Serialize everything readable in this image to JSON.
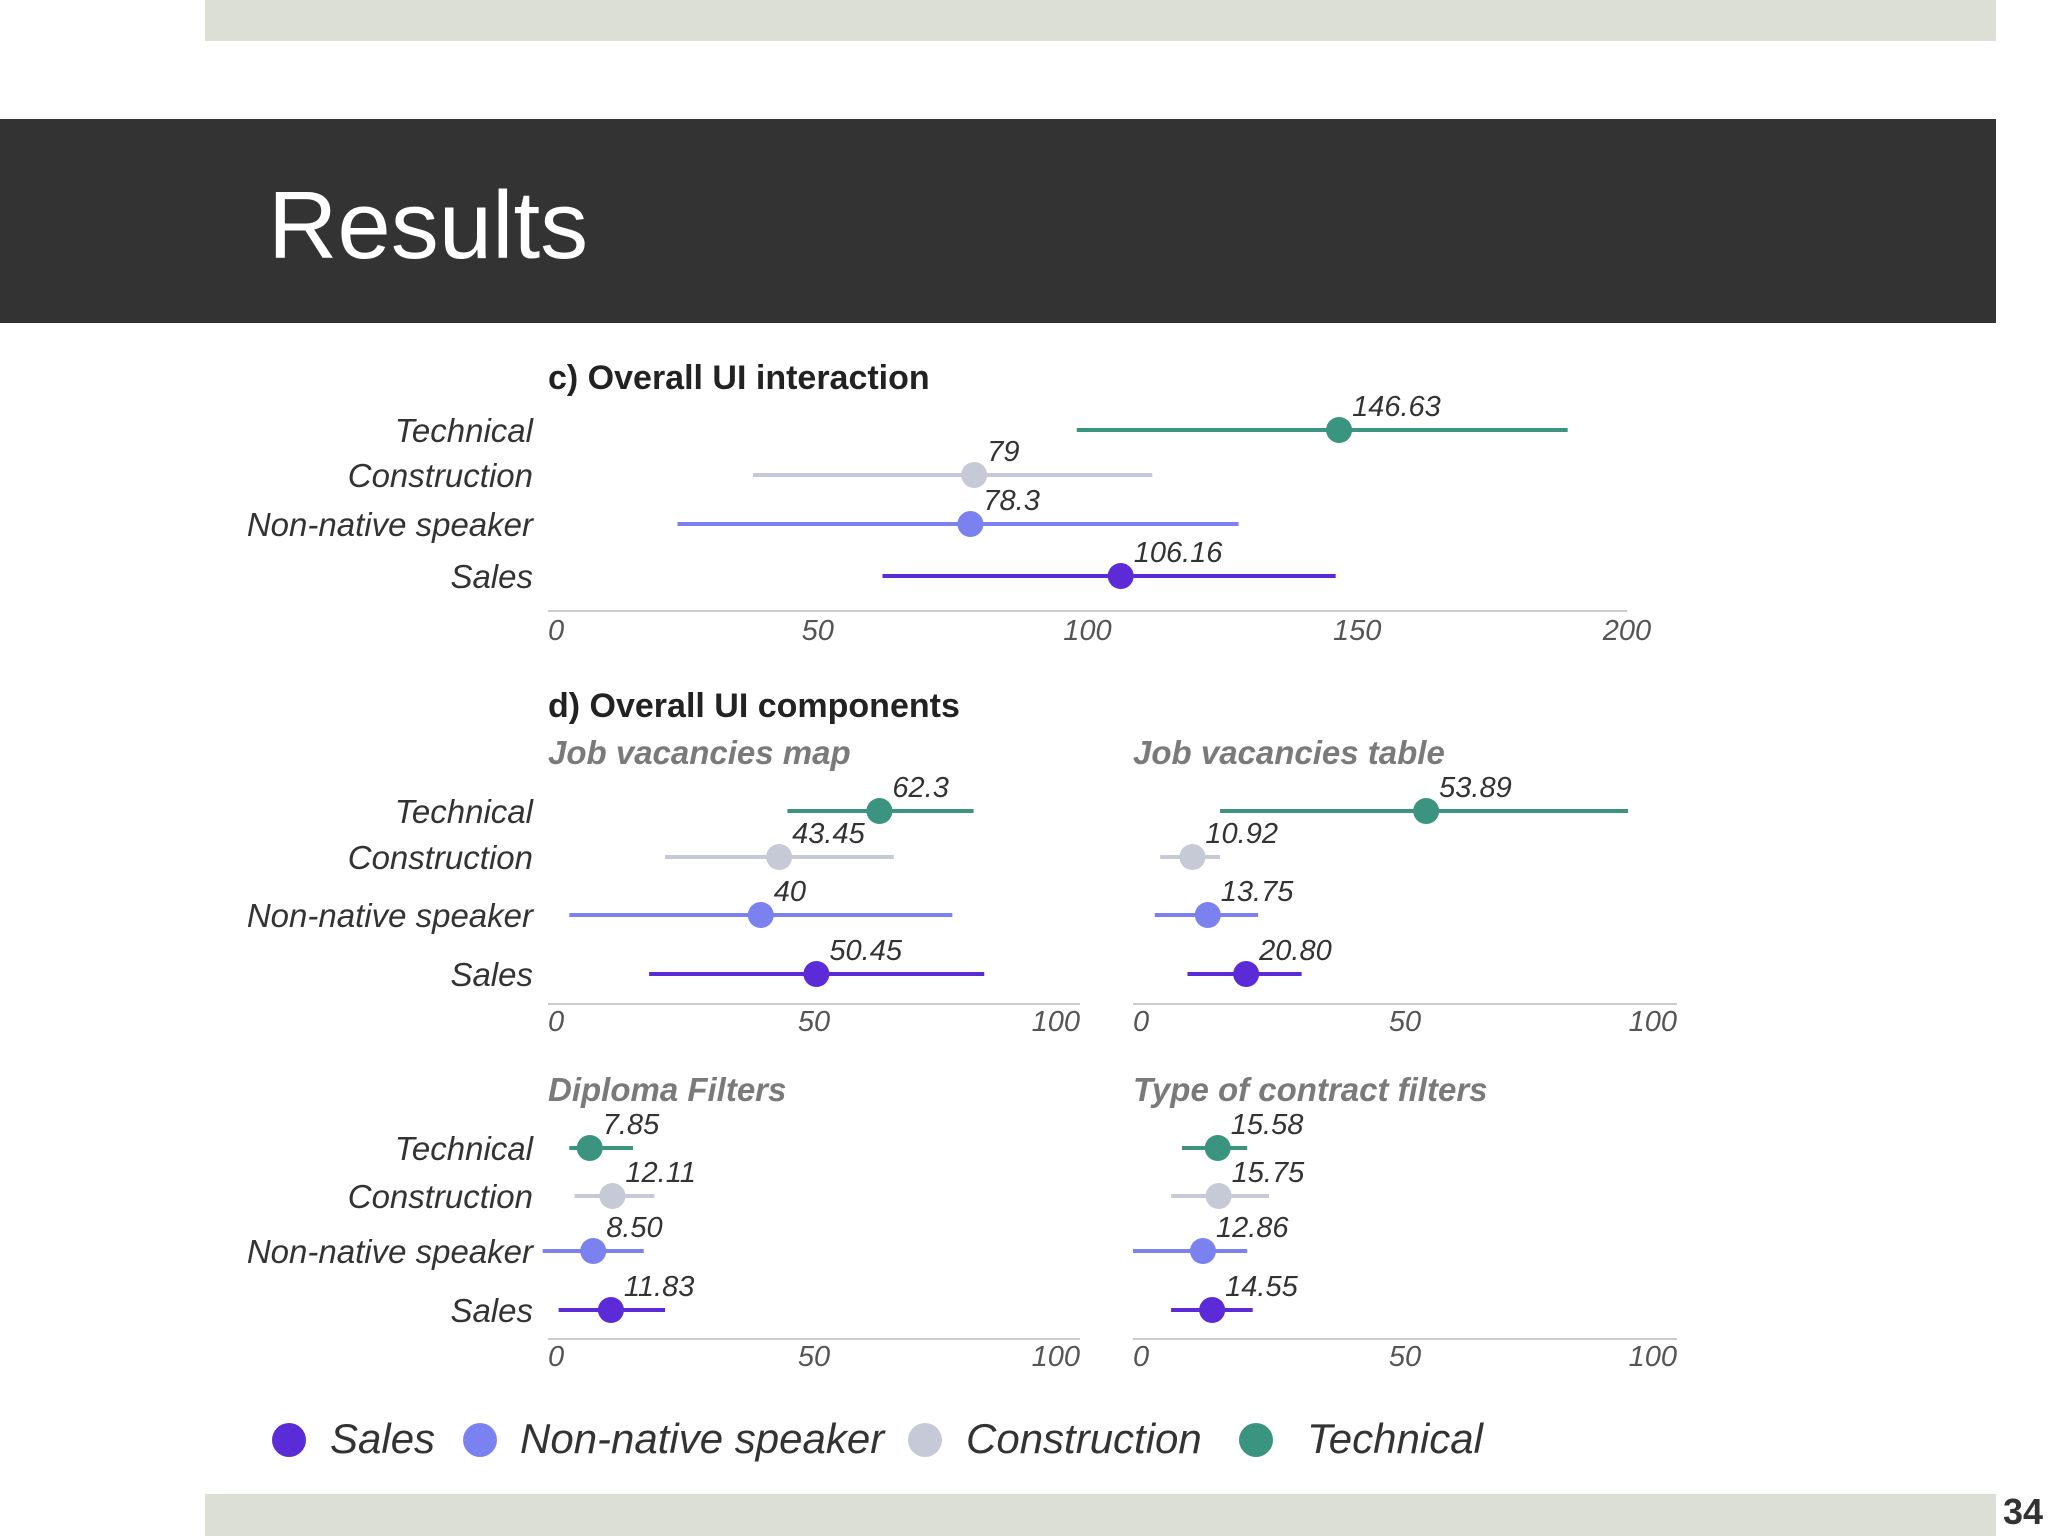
{
  "slide": {
    "title": "Results",
    "page_number": "34"
  },
  "colors": {
    "sales": "#5b2bd8",
    "non_native": "#7b82f0",
    "construction": "#c5cad6",
    "technical": "#3a9480",
    "axis": "#cccccc",
    "heading": "#222222",
    "subheading": "#7a7a7a",
    "label": "#333333",
    "tick": "#555555"
  },
  "legend": {
    "items": [
      {
        "key": "sales",
        "label": "Sales",
        "color": "#5b2bd8"
      },
      {
        "key": "non_native",
        "label": "Non-native speaker",
        "color": "#7b82f0"
      },
      {
        "key": "construction",
        "label": "Construction",
        "color": "#c5cad6"
      },
      {
        "key": "technical",
        "label": "Technical",
        "color": "#3a9480"
      }
    ]
  },
  "chart_data": [
    {
      "type": "dot-interval",
      "title": "c) Overall UI interaction",
      "categories": [
        "Technical",
        "Construction",
        "Non-native speaker",
        "Sales"
      ],
      "xlim": [
        0,
        200
      ],
      "xticks": [
        0,
        50,
        100,
        150,
        200
      ],
      "series": [
        {
          "name": "Technical",
          "value": 146.63,
          "label": "146.63",
          "ci": [
            98,
            189
          ]
        },
        {
          "name": "Construction",
          "value": 79,
          "label": "79",
          "ci": [
            38,
            112
          ]
        },
        {
          "name": "Non-native speaker",
          "value": 78.3,
          "label": "78.3",
          "ci": [
            24,
            128
          ]
        },
        {
          "name": "Sales",
          "value": 106.16,
          "label": "106.16",
          "ci": [
            62,
            146
          ]
        }
      ]
    },
    {
      "type": "dot-interval",
      "title": "d) Overall UI components",
      "subtitle": "Job vacancies map",
      "categories": [
        "Technical",
        "Construction",
        "Non-native speaker",
        "Sales"
      ],
      "xlim": [
        0,
        100
      ],
      "xticks": [
        0,
        50,
        100
      ],
      "series": [
        {
          "name": "Technical",
          "value": 62.3,
          "label": "62.3",
          "ci": [
            45,
            80
          ]
        },
        {
          "name": "Construction",
          "value": 43.45,
          "label": "43.45",
          "ci": [
            22,
            65
          ]
        },
        {
          "name": "Non-native speaker",
          "value": 40,
          "label": "40",
          "ci": [
            4,
            76
          ]
        },
        {
          "name": "Sales",
          "value": 50.45,
          "label": "50.45",
          "ci": [
            19,
            82
          ]
        }
      ]
    },
    {
      "type": "dot-interval",
      "subtitle": "Job vacancies table",
      "categories": [
        "Technical",
        "Construction",
        "Non-native speaker",
        "Sales"
      ],
      "xlim": [
        0,
        100
      ],
      "xticks": [
        0,
        50,
        100
      ],
      "series": [
        {
          "name": "Technical",
          "value": 53.89,
          "label": "53.89",
          "ci": [
            16,
            91
          ]
        },
        {
          "name": "Construction",
          "value": 10.92,
          "label": "10.92",
          "ci": [
            5,
            16
          ]
        },
        {
          "name": "Non-native speaker",
          "value": 13.75,
          "label": "13.75",
          "ci": [
            4,
            23
          ]
        },
        {
          "name": "Sales",
          "value": 20.8,
          "label": "20.80",
          "ci": [
            10,
            31
          ]
        }
      ]
    },
    {
      "type": "dot-interval",
      "subtitle": "Diploma Filters",
      "categories": [
        "Technical",
        "Construction",
        "Non-native speaker",
        "Sales"
      ],
      "xlim": [
        0,
        100
      ],
      "xticks": [
        0,
        50,
        100
      ],
      "series": [
        {
          "name": "Technical",
          "value": 7.85,
          "label": "7.85",
          "ci": [
            4,
            16
          ]
        },
        {
          "name": "Construction",
          "value": 12.11,
          "label": "12.11",
          "ci": [
            5,
            20
          ]
        },
        {
          "name": "Non-native speaker",
          "value": 8.5,
          "label": "8.50",
          "ci": [
            -1,
            18
          ]
        },
        {
          "name": "Sales",
          "value": 11.83,
          "label": "11.83",
          "ci": [
            2,
            22
          ]
        }
      ]
    },
    {
      "type": "dot-interval",
      "subtitle": "Type of contract filters",
      "categories": [
        "Technical",
        "Construction",
        "Non-native speaker",
        "Sales"
      ],
      "xlim": [
        0,
        100
      ],
      "xticks": [
        0,
        50,
        100
      ],
      "series": [
        {
          "name": "Technical",
          "value": 15.58,
          "label": "15.58",
          "ci": [
            9,
            21
          ]
        },
        {
          "name": "Construction",
          "value": 15.75,
          "label": "15.75",
          "ci": [
            7,
            25
          ]
        },
        {
          "name": "Non-native speaker",
          "value": 12.86,
          "label": "12.86",
          "ci": [
            0,
            21
          ]
        },
        {
          "name": "Sales",
          "value": 14.55,
          "label": "14.55",
          "ci": [
            7,
            22
          ]
        }
      ]
    }
  ]
}
